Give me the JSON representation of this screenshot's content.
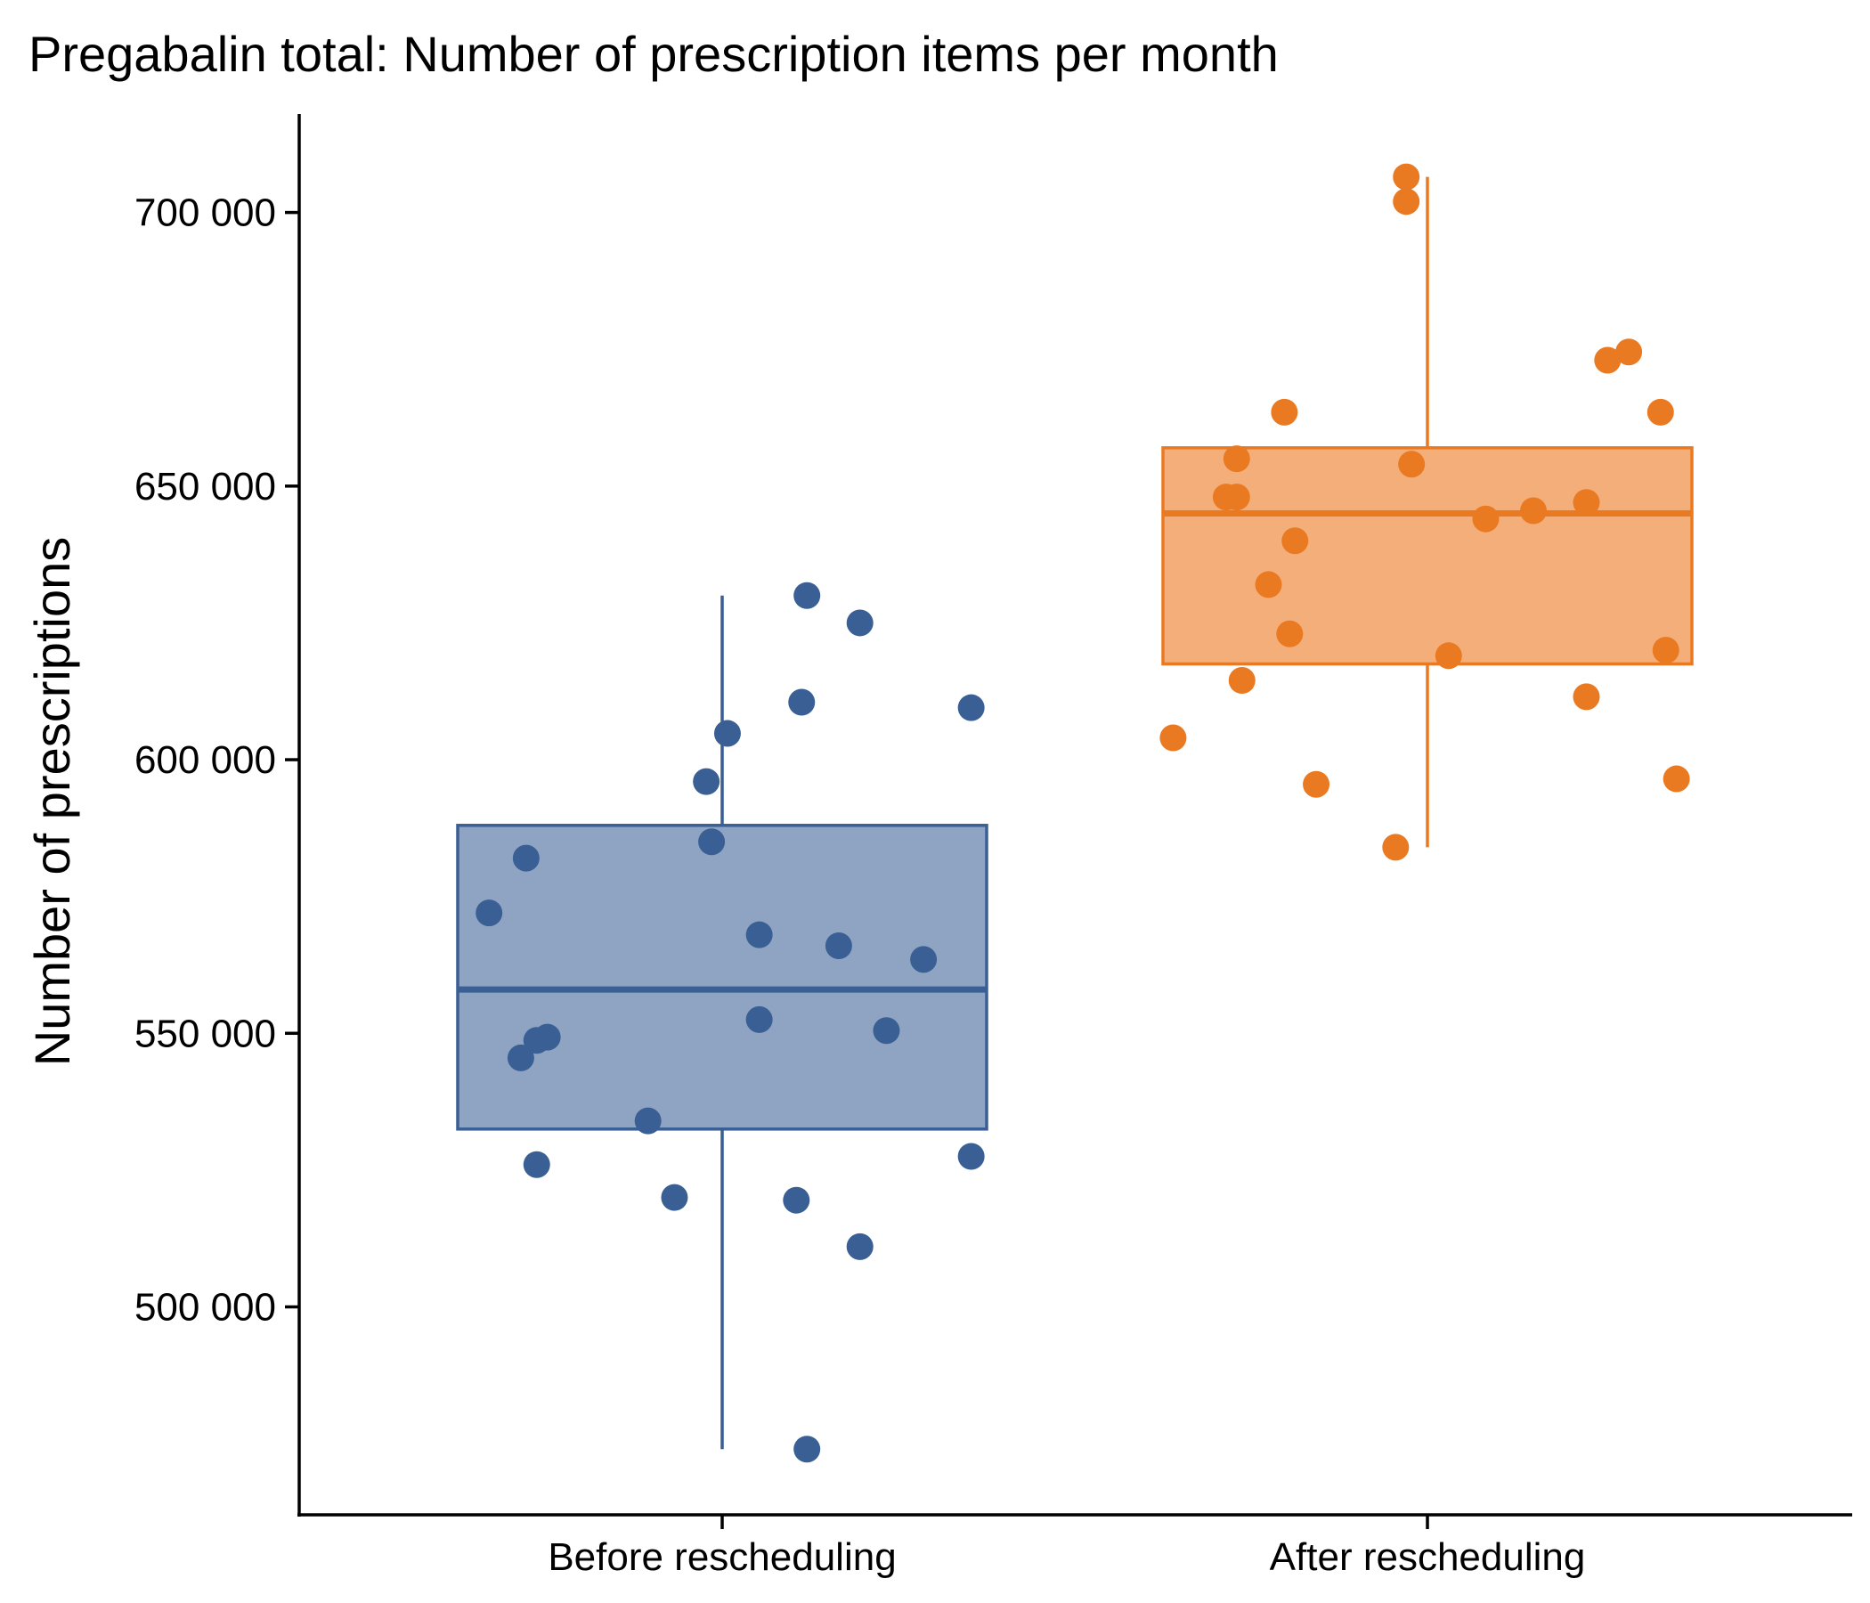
{
  "chart_data": {
    "type": "boxplot",
    "title": "Pregabalin total: Number of prescription items per month",
    "ylabel": "Number of prescriptions",
    "xlabel": "",
    "ylim": [
      462000,
      718000
    ],
    "yticks": [
      500000,
      550000,
      600000,
      650000,
      700000
    ],
    "ytick_labels": [
      "500 000",
      "550 000",
      "600 000",
      "650 000",
      "700 000"
    ],
    "grid": false,
    "groups": [
      {
        "label": "Before rescheduling",
        "color": "#3A5F94",
        "fill": "#8EA4C2",
        "box": {
          "whisker_low": 474000,
          "q1": 532500,
          "median": 558000,
          "q3": 588000,
          "whisker_high": 630000
        },
        "points": [
          {
            "x": -0.44,
            "y": 572000
          },
          {
            "x": -0.37,
            "y": 582000
          },
          {
            "x": -0.38,
            "y": 545500
          },
          {
            "x": -0.35,
            "y": 548700
          },
          {
            "x": -0.33,
            "y": 549300
          },
          {
            "x": -0.35,
            "y": 526000
          },
          {
            "x": -0.14,
            "y": 534000
          },
          {
            "x": -0.09,
            "y": 520000
          },
          {
            "x": -0.03,
            "y": 596000
          },
          {
            "x": -0.02,
            "y": 585000
          },
          {
            "x": 0.01,
            "y": 604800
          },
          {
            "x": 0.07,
            "y": 568000
          },
          {
            "x": 0.07,
            "y": 552500
          },
          {
            "x": 0.14,
            "y": 519500
          },
          {
            "x": 0.15,
            "y": 610500
          },
          {
            "x": 0.16,
            "y": 630000
          },
          {
            "x": 0.16,
            "y": 474000
          },
          {
            "x": 0.22,
            "y": 566000
          },
          {
            "x": 0.26,
            "y": 625000
          },
          {
            "x": 0.26,
            "y": 511000
          },
          {
            "x": 0.31,
            "y": 550500
          },
          {
            "x": 0.38,
            "y": 563500
          },
          {
            "x": 0.47,
            "y": 609500
          },
          {
            "x": 0.47,
            "y": 527500
          }
        ]
      },
      {
        "label": "After rescheduling",
        "color": "#EA7A22",
        "fill": "#F4AE7A",
        "box": {
          "whisker_low": 584000,
          "q1": 617500,
          "median": 645000,
          "q3": 657000,
          "whisker_high": 706500
        },
        "points": [
          {
            "x": -0.48,
            "y": 604000
          },
          {
            "x": -0.38,
            "y": 648000
          },
          {
            "x": -0.36,
            "y": 648000
          },
          {
            "x": -0.36,
            "y": 655000
          },
          {
            "x": -0.35,
            "y": 614500
          },
          {
            "x": -0.3,
            "y": 632000
          },
          {
            "x": -0.27,
            "y": 663500
          },
          {
            "x": -0.25,
            "y": 640000
          },
          {
            "x": -0.26,
            "y": 623000
          },
          {
            "x": -0.21,
            "y": 595500
          },
          {
            "x": -0.06,
            "y": 584000
          },
          {
            "x": -0.04,
            "y": 706500
          },
          {
            "x": -0.04,
            "y": 702000
          },
          {
            "x": -0.03,
            "y": 654000
          },
          {
            "x": 0.04,
            "y": 619000
          },
          {
            "x": 0.11,
            "y": 644000
          },
          {
            "x": 0.2,
            "y": 645500
          },
          {
            "x": 0.3,
            "y": 647000
          },
          {
            "x": 0.3,
            "y": 611500
          },
          {
            "x": 0.34,
            "y": 673000
          },
          {
            "x": 0.38,
            "y": 674500
          },
          {
            "x": 0.44,
            "y": 663500
          },
          {
            "x": 0.45,
            "y": 620000
          },
          {
            "x": 0.47,
            "y": 596500
          }
        ]
      }
    ]
  }
}
